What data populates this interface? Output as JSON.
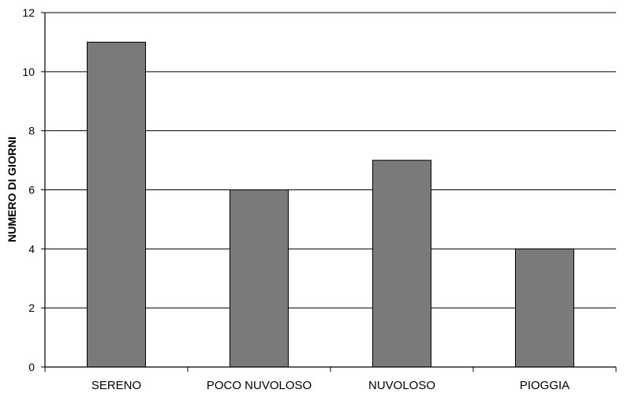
{
  "chart_data": {
    "type": "bar",
    "title": "",
    "xlabel": "",
    "ylabel": "NUMERO DI GIORNI",
    "categories": [
      "SERENO",
      "POCO NUVOLOSO",
      "NUVOLOSO",
      "PIOGGIA"
    ],
    "values": [
      11,
      6,
      7,
      4
    ],
    "ylim": [
      0,
      12
    ],
    "yticks": [
      "0",
      "2",
      "4",
      "6",
      "8",
      "10",
      "12"
    ],
    "grid": true,
    "legend": "none",
    "colors": {
      "bar_fill": "#7a7a7a",
      "bar_stroke": "#000000",
      "grid": "#000000",
      "axis": "#000000"
    }
  }
}
